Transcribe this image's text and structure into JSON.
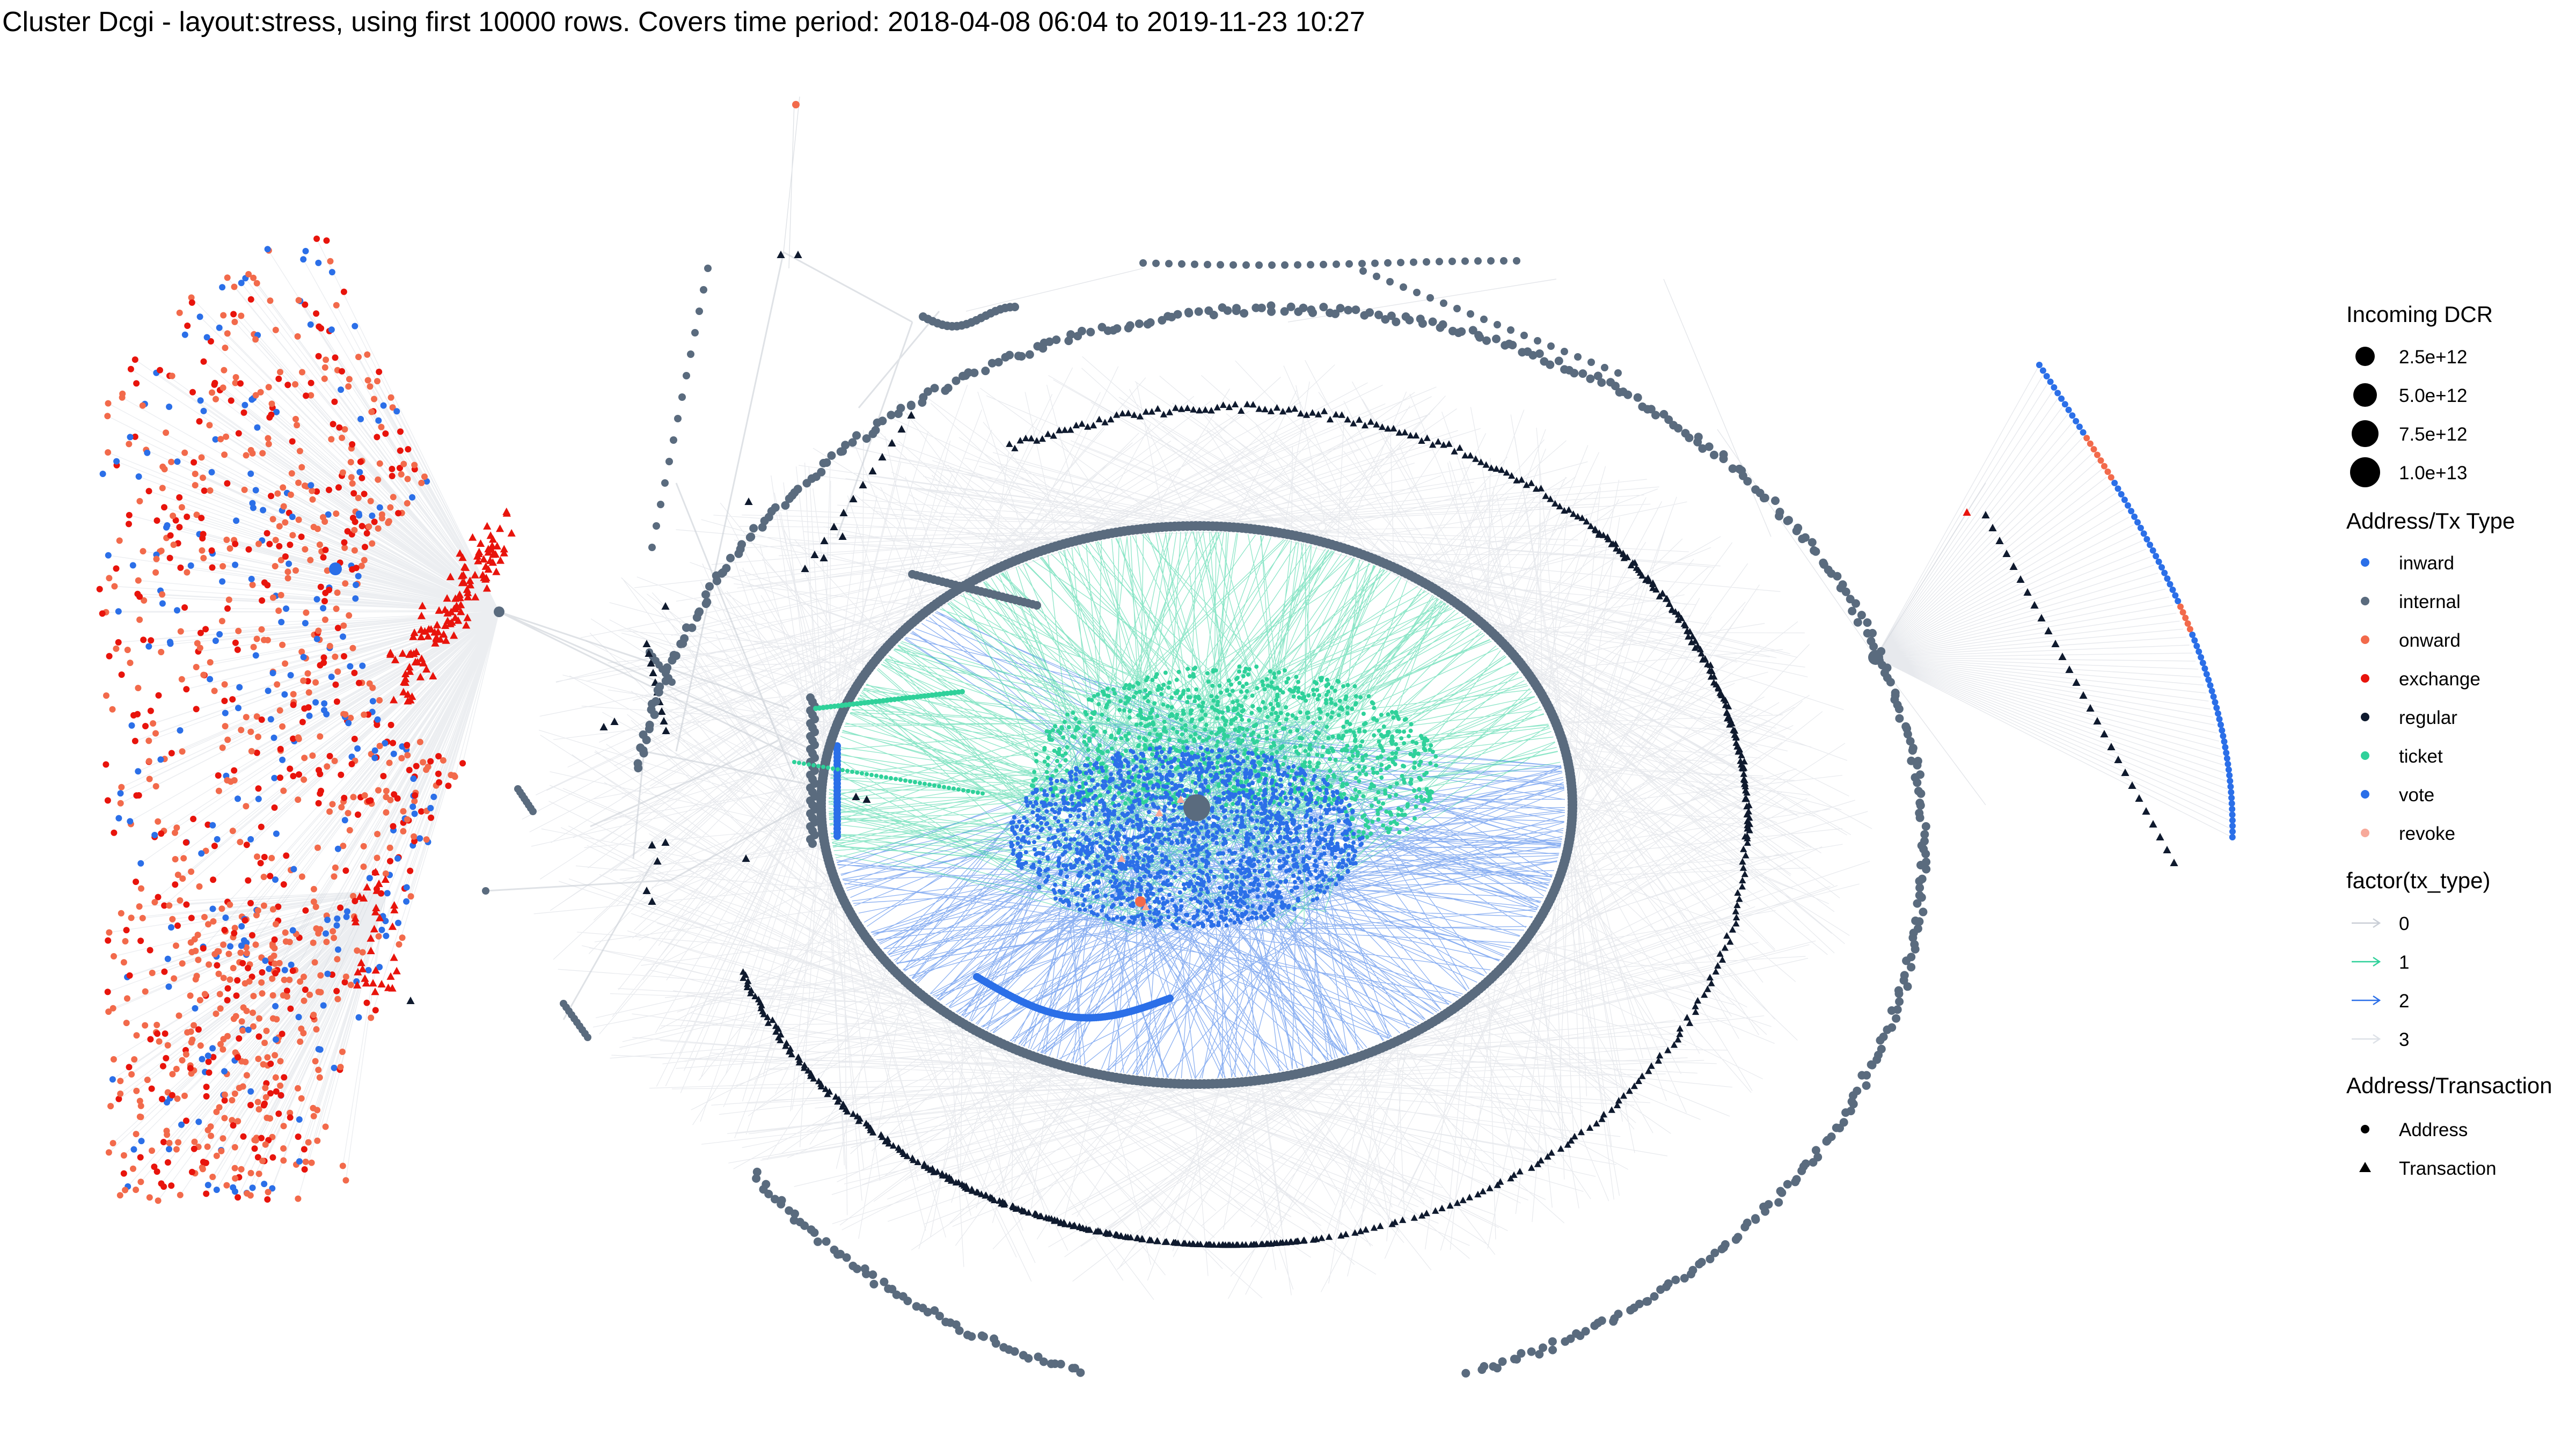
{
  "title": "Cluster Dcgi - layout:stress, using first 10000 rows. Covers time period: 2018-04-08 06:04 to 2019-11-23 10:27",
  "colors": {
    "inward": "#2b6fe8",
    "internal": "#5a6b7e",
    "onward": "#f26a4b",
    "exchange": "#e8140c",
    "regular": "#0f1a2e",
    "ticket": "#2fd19a",
    "vote": "#2b6fe8",
    "revoke": "#f7a99a",
    "edge0": "#c9ced6",
    "edge1": "#2fd19a",
    "edge2": "#2b6fe8",
    "edge3": "#dde1e7"
  },
  "legend": {
    "size": {
      "title": "Incoming DCR",
      "items": [
        "2.5e+12",
        "5.0e+12",
        "7.5e+12",
        "1.0e+13"
      ]
    },
    "type": {
      "title": "Address/Tx Type",
      "items": [
        {
          "label": "inward",
          "color_key": "inward"
        },
        {
          "label": "internal",
          "color_key": "internal"
        },
        {
          "label": "onward",
          "color_key": "onward"
        },
        {
          "label": "exchange",
          "color_key": "exchange"
        },
        {
          "label": "regular",
          "color_key": "regular"
        },
        {
          "label": "ticket",
          "color_key": "ticket"
        },
        {
          "label": "vote",
          "color_key": "vote"
        },
        {
          "label": "revoke",
          "color_key": "revoke"
        }
      ]
    },
    "edge": {
      "title": "factor(tx_type)",
      "items": [
        {
          "label": "0",
          "color_key": "edge0"
        },
        {
          "label": "1",
          "color_key": "edge1"
        },
        {
          "label": "2",
          "color_key": "edge2"
        },
        {
          "label": "3",
          "color_key": "edge3"
        }
      ]
    },
    "shape": {
      "title": "Address/Transaction",
      "items": [
        {
          "label": "Address",
          "icon": "circle-icon"
        },
        {
          "label": "Transaction",
          "icon": "triangle-icon"
        }
      ]
    }
  }
}
